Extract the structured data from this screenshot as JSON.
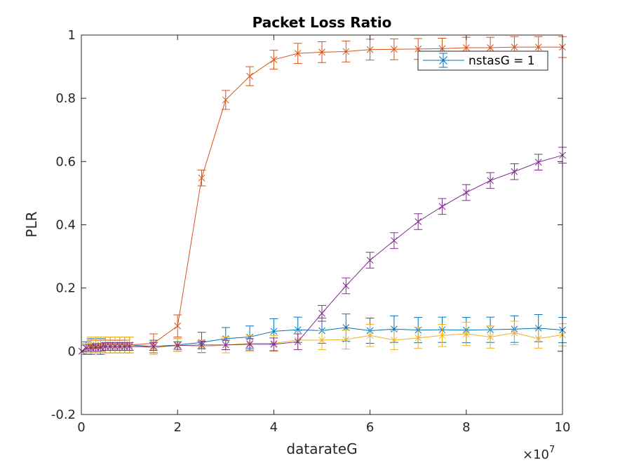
{
  "chart_data": {
    "type": "line",
    "title": "Packet Loss Ratio",
    "xlabel": "datarateG",
    "ylabel": "PLR",
    "x_exponent_label": "×10",
    "x_exponent": "7",
    "xlim": [
      0,
      10
    ],
    "ylim": [
      -0.2,
      1
    ],
    "xticks": [
      "0",
      "2",
      "4",
      "6",
      "8",
      "10"
    ],
    "yticks": [
      "-0.2",
      "0",
      "0.2",
      "0.4",
      "0.6",
      "0.8",
      "1"
    ],
    "grid": false,
    "legend_position": "top-right",
    "legend_entries": [
      "nstasG = 1"
    ],
    "marker": "x",
    "x": [
      0.01,
      0.1,
      0.2,
      0.3,
      0.4,
      0.5,
      0.6,
      0.7,
      0.8,
      0.9,
      1.0,
      1.5,
      2.0,
      2.5,
      3.0,
      3.5,
      4.0,
      4.5,
      5.0,
      5.5,
      6.0,
      6.5,
      7.0,
      7.5,
      8.0,
      8.5,
      9.0,
      9.5,
      10.0
    ],
    "series": [
      {
        "color": "#0072BD",
        "values": [
          0.0,
          0.01,
          0.015,
          0.02,
          0.015,
          0.02,
          0.02,
          0.02,
          0.02,
          0.02,
          0.02,
          0.015,
          0.02,
          0.028,
          0.04,
          0.045,
          0.063,
          0.068,
          0.065,
          0.075,
          0.065,
          0.07,
          0.067,
          0.068,
          0.067,
          0.068,
          0.07,
          0.073,
          0.067
        ],
        "err": [
          0.0,
          0.02,
          0.025,
          0.025,
          0.025,
          0.025,
          0.025,
          0.025,
          0.025,
          0.025,
          0.025,
          0.02,
          0.02,
          0.032,
          0.035,
          0.035,
          0.04,
          0.04,
          0.04,
          0.043,
          0.04,
          0.042,
          0.04,
          0.04,
          0.04,
          0.04,
          0.042,
          0.043,
          0.04
        ]
      },
      {
        "color": "#D95319",
        "values": [
          0.0,
          0.01,
          0.015,
          0.015,
          0.015,
          0.015,
          0.015,
          0.015,
          0.015,
          0.015,
          0.02,
          0.025,
          0.08,
          0.548,
          0.795,
          0.87,
          0.922,
          0.942,
          0.946,
          0.948,
          0.954,
          0.955,
          0.956,
          0.957,
          0.96,
          0.96,
          0.962,
          0.962,
          0.962
        ],
        "err": [
          0.0,
          0.015,
          0.02,
          0.02,
          0.02,
          0.02,
          0.02,
          0.02,
          0.02,
          0.02,
          0.025,
          0.03,
          0.035,
          0.025,
          0.03,
          0.03,
          0.03,
          0.032,
          0.033,
          0.033,
          0.033,
          0.033,
          0.033,
          0.033,
          0.033,
          0.033,
          0.033,
          0.033,
          0.033
        ]
      },
      {
        "color": "#EDB120",
        "values": [
          0.0,
          0.01,
          0.02,
          0.02,
          0.02,
          0.02,
          0.02,
          0.02,
          0.02,
          0.02,
          0.02,
          0.01,
          0.02,
          0.015,
          0.02,
          0.025,
          0.025,
          0.035,
          0.035,
          0.037,
          0.05,
          0.035,
          0.042,
          0.05,
          0.055,
          0.045,
          0.058,
          0.04,
          0.052
        ],
        "err": [
          0.0,
          0.015,
          0.025,
          0.025,
          0.025,
          0.025,
          0.025,
          0.025,
          0.025,
          0.025,
          0.025,
          0.02,
          0.02,
          0.02,
          0.025,
          0.025,
          0.025,
          0.03,
          0.03,
          0.03,
          0.035,
          0.03,
          0.033,
          0.035,
          0.037,
          0.035,
          0.037,
          0.03,
          0.035
        ]
      },
      {
        "color": "#7E2F8E",
        "values": [
          0.0,
          0.01,
          0.01,
          0.012,
          0.012,
          0.015,
          0.015,
          0.015,
          0.015,
          0.015,
          0.015,
          0.015,
          0.018,
          0.02,
          0.02,
          0.022,
          0.022,
          0.03,
          0.12,
          0.207,
          0.288,
          0.35,
          0.41,
          0.458,
          0.502,
          0.54,
          0.568,
          0.598,
          0.62
        ],
        "err": [
          0.0,
          0.01,
          0.01,
          0.012,
          0.012,
          0.012,
          0.012,
          0.012,
          0.012,
          0.012,
          0.012,
          0.012,
          0.012,
          0.012,
          0.015,
          0.018,
          0.02,
          0.025,
          0.025,
          0.025,
          0.025,
          0.025,
          0.025,
          0.025,
          0.025,
          0.025,
          0.025,
          0.025,
          0.025
        ]
      }
    ]
  }
}
